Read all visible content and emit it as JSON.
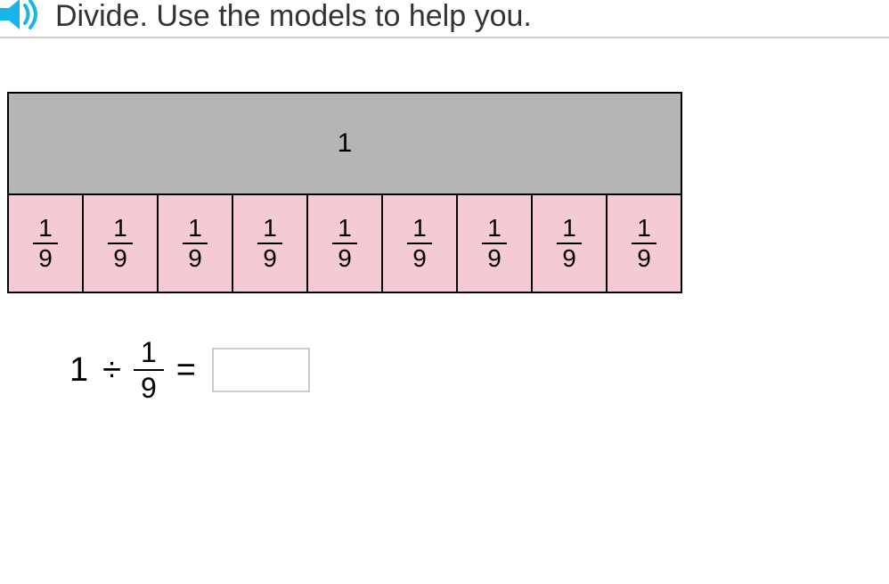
{
  "instruction": "Divide. Use the models to help you.",
  "speaker_color": "#19b4ea",
  "model": {
    "whole_label": "1",
    "whole_bg": "#b5b5b5",
    "part_bg": "#f4cad4",
    "border_color": "#000000",
    "parts_count": 9,
    "part_fraction": {
      "num": "1",
      "den": "9"
    }
  },
  "equation": {
    "dividend": "1",
    "divide_sign": "÷",
    "divisor": {
      "num": "1",
      "den": "9"
    },
    "equals": "=",
    "answer": ""
  }
}
